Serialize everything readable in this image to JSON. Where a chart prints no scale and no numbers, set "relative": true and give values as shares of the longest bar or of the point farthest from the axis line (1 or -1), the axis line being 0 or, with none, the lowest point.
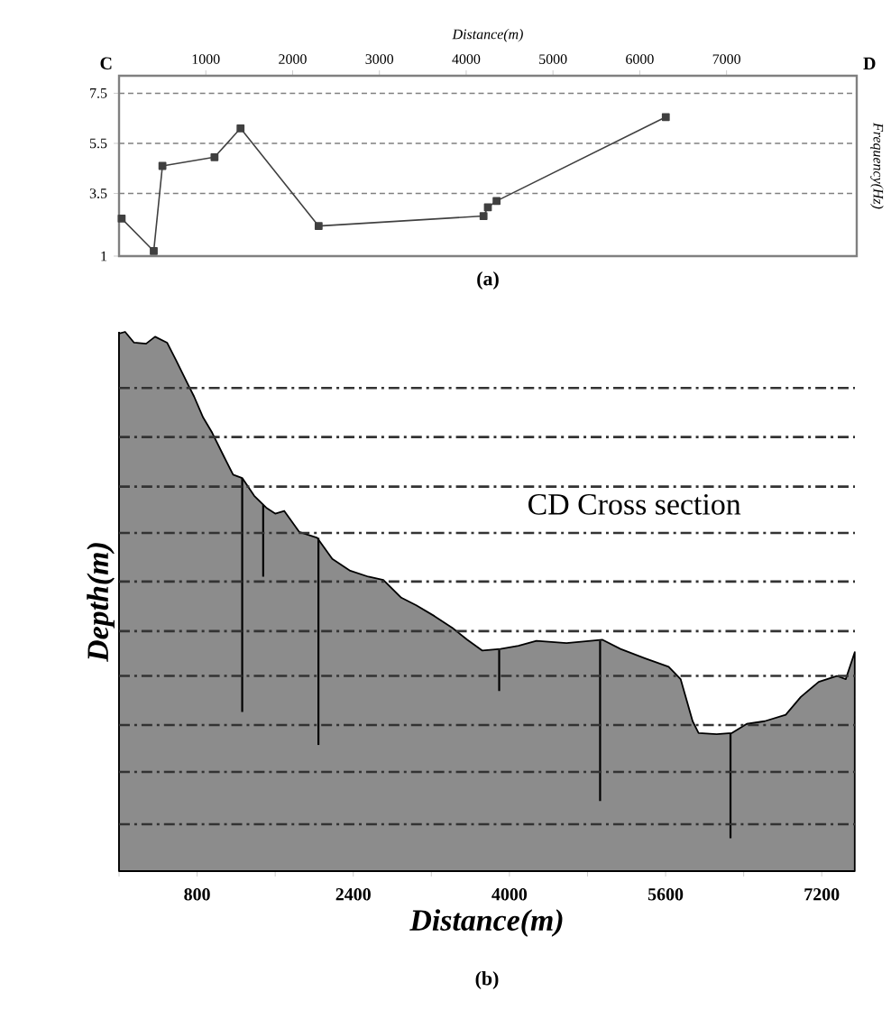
{
  "chart_data": [
    {
      "type": "line",
      "xlabel": "Distance(m)",
      "ylabel": "Frequency(Hz)",
      "x": [
        30,
        400,
        500,
        1100,
        1400,
        2300,
        4200,
        4250,
        4350,
        6300
      ],
      "values": [
        2.5,
        1.2,
        4.6,
        4.95,
        6.1,
        2.2,
        2.6,
        2.95,
        3.2,
        6.55
      ],
      "color": "#404040",
      "marker": "square",
      "xlim": [
        0,
        8500
      ],
      "ylim": [
        1,
        8.2
      ],
      "xticks": [
        1000,
        2000,
        3000,
        4000,
        5000,
        6000,
        7000
      ],
      "yticks": [
        1,
        3.5,
        5.5,
        7.5
      ],
      "grid": "y",
      "annotations": [
        "C",
        "D",
        "(a)"
      ]
    },
    {
      "type": "area",
      "xlabel": "Distance(m)",
      "ylabel": "Depth(m)",
      "relative": true,
      "xlim": [
        0,
        7540
      ],
      "xticks": [
        {
          "value": 0,
          "label": null
        },
        800,
        {
          "value": 1600,
          "label": null
        },
        2400,
        {
          "value": 3200,
          "label": null
        },
        4000,
        {
          "value": 4800,
          "label": null
        },
        5600,
        {
          "value": 6400,
          "label": null
        },
        7200
      ],
      "series": [
        {
          "type": "area",
          "color": "#8c8c8c",
          "x": [
            0,
            62,
            154,
            277,
            369,
            492,
            585,
            708,
            769,
            862,
            954,
            1077,
            1169,
            1262,
            1385,
            1508,
            1600,
            1692,
            1846,
            2031,
            2185,
            2369,
            2554,
            2708,
            2892,
            3046,
            3231,
            3415,
            3569,
            3723,
            3908,
            4092,
            4277,
            4585,
            4954,
            5138,
            5385,
            5631,
            5754,
            5877,
            5938,
            6123,
            6277,
            6431,
            6615,
            6831,
            6985,
            7169,
            7354,
            7446,
            7538
          ],
          "values": [
            0.997,
            1,
            0.98,
            0.978,
            0.991,
            0.98,
            0.947,
            0.902,
            0.88,
            0.841,
            0.813,
            0.768,
            0.735,
            0.729,
            0.696,
            0.674,
            0.663,
            0.668,
            0.629,
            0.618,
            0.579,
            0.557,
            0.546,
            0.54,
            0.507,
            0.493,
            0.473,
            0.451,
            0.429,
            0.409,
            0.412,
            0.418,
            0.427,
            0.423,
            0.429,
            0.412,
            0.395,
            0.379,
            0.356,
            0.278,
            0.256,
            0.254,
            0.256,
            0.273,
            0.278,
            0.29,
            0.323,
            0.351,
            0.362,
            0.356,
            0.406
          ]
        },
        {
          "type": "line",
          "color": "#000000",
          "marker": "none",
          "x": [
            1262,
            1262
          ],
          "values": [
            0.729,
            0.295
          ]
        },
        {
          "type": "line",
          "color": "#000000",
          "marker": "none",
          "x": [
            1477,
            1477
          ],
          "values": [
            0.679,
            0.546
          ]
        },
        {
          "type": "line",
          "color": "#000000",
          "marker": "none",
          "x": [
            2043,
            2043
          ],
          "values": [
            0.618,
            0.234
          ]
        },
        {
          "type": "line",
          "color": "#000000",
          "marker": "none",
          "x": [
            3895,
            3895
          ],
          "values": [
            0.41,
            0.334
          ]
        },
        {
          "type": "line",
          "color": "#000000",
          "marker": "none",
          "x": [
            4929,
            4929
          ],
          "values": [
            0.427,
            0.13
          ]
        },
        {
          "type": "line",
          "color": "#000000",
          "marker": "none",
          "x": [
            6265,
            6265
          ],
          "values": [
            0.256,
            0.061
          ]
        }
      ],
      "ref_lines": [
        {
          "axis": "y",
          "value": 0.896,
          "color": "#333333",
          "line_style": "dashed"
        },
        {
          "axis": "y",
          "value": 0.805,
          "color": "#333333",
          "line_style": "dashed"
        },
        {
          "axis": "y",
          "value": 0.713,
          "color": "#333333",
          "line_style": "dashed"
        },
        {
          "axis": "y",
          "value": 0.627,
          "color": "#333333",
          "line_style": "dashed"
        },
        {
          "axis": "y",
          "value": 0.537,
          "color": "#333333",
          "line_style": "dashed"
        },
        {
          "axis": "y",
          "value": 0.445,
          "color": "#333333",
          "line_style": "dashed"
        },
        {
          "axis": "y",
          "value": 0.362,
          "color": "#333333",
          "line_style": "dashed"
        },
        {
          "axis": "y",
          "value": 0.271,
          "color": "#333333",
          "line_style": "dashed"
        },
        {
          "axis": "y",
          "value": 0.184,
          "color": "#333333",
          "line_style": "dashed"
        },
        {
          "axis": "y",
          "value": 0.087,
          "color": "#333333",
          "line_style": "dashed"
        }
      ],
      "annotations": [
        "CD Cross section",
        "(b)"
      ]
    }
  ]
}
